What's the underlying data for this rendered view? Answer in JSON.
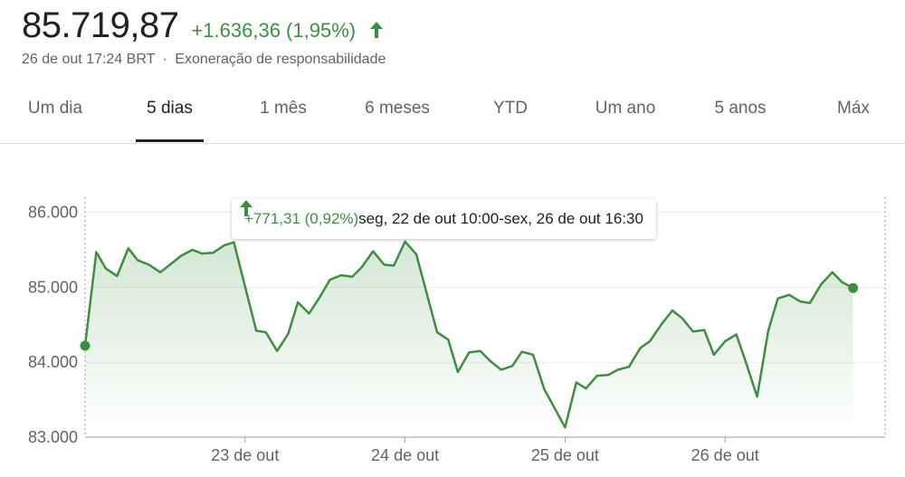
{
  "quote": {
    "price": "85.719,87",
    "change": "+1.636,36 (1,95%)",
    "timestamp": "26 de out 17:24 BRT",
    "separator": "·",
    "disclaimer": "Exoneração de responsabilidade",
    "up_color": "#3e8e41"
  },
  "tabs": [
    {
      "label": "Um dia",
      "active": false
    },
    {
      "label": "5 dias",
      "active": true
    },
    {
      "label": "1 mês",
      "active": false
    },
    {
      "label": "6 meses",
      "active": false
    },
    {
      "label": "YTD",
      "active": false
    },
    {
      "label": "Um ano",
      "active": false
    },
    {
      "label": "5 anos",
      "active": false
    },
    {
      "label": "Máx",
      "active": false
    }
  ],
  "tooltip": {
    "change": "+771,31 (0,92%)",
    "range": "seg, 22 de out 10:00-sex, 26 de out 16:30"
  },
  "chart_data": {
    "type": "area",
    "line_color": "#3e8e41",
    "y_ticks": [
      83000,
      84000,
      85000,
      86000
    ],
    "y_tick_labels": [
      "83.000",
      "84.000",
      "85.000",
      "86.000"
    ],
    "ylim": [
      83000,
      86200
    ],
    "x_tick_labels": [
      "23 de out",
      "24 de out",
      "25 de out",
      "26 de out"
    ],
    "x_tick_positions": [
      1,
      2,
      3,
      4
    ],
    "xlim": [
      0,
      5
    ],
    "grid": true,
    "series": [
      {
        "points": [
          [
            0.0,
            84220
          ],
          [
            0.07,
            85470
          ],
          [
            0.13,
            85250
          ],
          [
            0.2,
            85150
          ],
          [
            0.27,
            85520
          ],
          [
            0.33,
            85360
          ],
          [
            0.4,
            85300
          ],
          [
            0.47,
            85200
          ],
          [
            0.53,
            85300
          ],
          [
            0.6,
            85420
          ],
          [
            0.67,
            85500
          ],
          [
            0.73,
            85450
          ],
          [
            0.8,
            85460
          ],
          [
            0.87,
            85560
          ],
          [
            0.93,
            85600
          ],
          [
            1.07,
            84420
          ],
          [
            1.13,
            84400
          ],
          [
            1.2,
            84150
          ],
          [
            1.27,
            84380
          ],
          [
            1.33,
            84800
          ],
          [
            1.4,
            84650
          ],
          [
            1.47,
            84880
          ],
          [
            1.53,
            85100
          ],
          [
            1.6,
            85160
          ],
          [
            1.67,
            85140
          ],
          [
            1.73,
            85270
          ],
          [
            1.8,
            85480
          ],
          [
            1.87,
            85300
          ],
          [
            1.93,
            85290
          ],
          [
            2.0,
            85610
          ],
          [
            2.07,
            85440
          ],
          [
            2.2,
            84400
          ],
          [
            2.27,
            84300
          ],
          [
            2.33,
            83870
          ],
          [
            2.4,
            84130
          ],
          [
            2.47,
            84150
          ],
          [
            2.53,
            84020
          ],
          [
            2.6,
            83900
          ],
          [
            2.67,
            83950
          ],
          [
            2.73,
            84140
          ],
          [
            2.8,
            84100
          ],
          [
            2.87,
            83640
          ],
          [
            3.0,
            83130
          ],
          [
            3.07,
            83730
          ],
          [
            3.13,
            83650
          ],
          [
            3.2,
            83820
          ],
          [
            3.27,
            83830
          ],
          [
            3.33,
            83900
          ],
          [
            3.4,
            83940
          ],
          [
            3.47,
            84190
          ],
          [
            3.53,
            84280
          ],
          [
            3.6,
            84500
          ],
          [
            3.67,
            84690
          ],
          [
            3.73,
            84590
          ],
          [
            3.8,
            84410
          ],
          [
            3.87,
            84430
          ],
          [
            3.93,
            84100
          ],
          [
            4.0,
            84280
          ],
          [
            4.07,
            84370
          ],
          [
            4.13,
            84000
          ],
          [
            4.2,
            83540
          ],
          [
            4.27,
            84420
          ],
          [
            4.33,
            84850
          ],
          [
            4.4,
            84900
          ],
          [
            4.47,
            84810
          ],
          [
            4.53,
            84790
          ],
          [
            4.6,
            85040
          ],
          [
            4.67,
            85200
          ],
          [
            4.73,
            85070
          ],
          [
            4.8,
            84990
          ]
        ]
      }
    ]
  }
}
